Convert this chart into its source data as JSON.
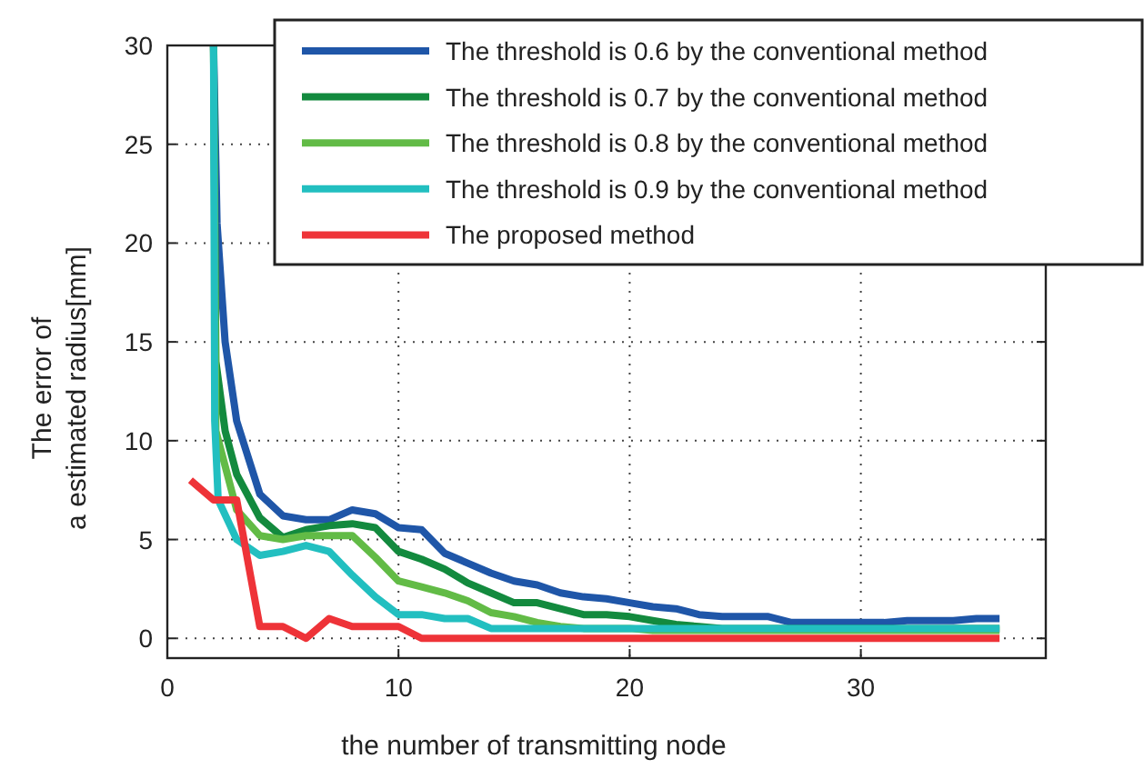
{
  "chart_data": {
    "type": "line",
    "xlabel": "the number of transmitting node",
    "ylabel": "The error of\na estimated radius[mm]",
    "xlim": [
      0,
      38
    ],
    "ylim": [
      -1,
      30
    ],
    "xticks": [
      0,
      10,
      20,
      30
    ],
    "yticks": [
      0,
      5,
      10,
      15,
      20,
      25,
      30
    ],
    "grid": true,
    "legend": "top right",
    "marker": "none",
    "line_style": "solid",
    "series": [
      {
        "name": "The threshold is 0.6 by the conventional method",
        "color": "#1f56a8",
        "x": [
          2,
          2.15,
          2.5,
          3,
          4,
          5,
          6,
          7,
          8,
          9,
          10,
          11,
          12,
          13,
          14,
          15,
          16,
          17,
          18,
          19,
          20,
          21,
          22,
          23,
          24,
          25,
          26,
          27,
          28,
          29,
          30,
          31,
          32,
          33,
          34,
          35,
          36
        ],
        "values": [
          30,
          21,
          15,
          11,
          7.3,
          6.2,
          6.0,
          6.0,
          6.5,
          6.3,
          5.6,
          5.5,
          4.3,
          3.8,
          3.3,
          2.9,
          2.7,
          2.3,
          2.1,
          2.0,
          1.8,
          1.6,
          1.5,
          1.2,
          1.1,
          1.1,
          1.1,
          0.8,
          0.8,
          0.8,
          0.8,
          0.8,
          0.9,
          0.9,
          0.9,
          1.0,
          1.0
        ]
      },
      {
        "name": "The threshold is 0.7 by the conventional method",
        "color": "#138a3e",
        "x": [
          2,
          2.1,
          2.5,
          3,
          4,
          5,
          6,
          7,
          8,
          9,
          10,
          11,
          12,
          13,
          14,
          15,
          16,
          17,
          18,
          19,
          20,
          21,
          22,
          23,
          24,
          25,
          26,
          27,
          28,
          29,
          30,
          31,
          32,
          33,
          34,
          35,
          36
        ],
        "values": [
          30,
          14,
          10.5,
          8.3,
          6.1,
          5.1,
          5.5,
          5.7,
          5.8,
          5.6,
          4.4,
          4.0,
          3.5,
          2.8,
          2.3,
          1.8,
          1.8,
          1.5,
          1.2,
          1.2,
          1.1,
          0.9,
          0.7,
          0.6,
          0.5,
          0.5,
          0.5,
          0.5,
          0.5,
          0.5,
          0.5,
          0.5,
          0.5,
          0.5,
          0.5,
          0.5,
          0.5
        ]
      },
      {
        "name": "The threshold is 0.8 by the conventional method",
        "color": "#62bb46",
        "x": [
          2,
          2.1,
          3,
          4,
          5,
          6,
          7,
          8,
          9,
          10,
          11,
          12,
          13,
          14,
          15,
          16,
          17,
          18,
          19,
          20,
          21,
          22,
          23,
          24,
          25,
          26,
          27,
          28,
          29,
          30,
          31,
          32,
          33,
          34,
          35,
          36
        ],
        "values": [
          30,
          10.5,
          6.5,
          5.2,
          5.0,
          5.2,
          5.2,
          5.2,
          4.1,
          2.9,
          2.6,
          2.3,
          1.9,
          1.3,
          1.1,
          0.8,
          0.6,
          0.5,
          0.5,
          0.5,
          0.4,
          0.4,
          0.4,
          0.4,
          0.4,
          0.4,
          0.4,
          0.4,
          0.4,
          0.4,
          0.4,
          0.4,
          0.4,
          0.4,
          0.4,
          0.4
        ]
      },
      {
        "name": "The threshold is 0.9 by the conventional method",
        "color": "#22bfc0",
        "x": [
          2,
          2.05,
          2.2,
          3,
          4,
          5,
          6,
          7,
          8,
          9,
          10,
          11,
          12,
          13,
          14,
          15,
          16,
          17,
          18,
          19,
          20,
          21,
          22,
          23,
          24,
          25,
          26,
          27,
          28,
          29,
          30,
          31,
          32,
          33,
          34,
          35,
          36
        ],
        "values": [
          30,
          11,
          7,
          5,
          4.2,
          4.4,
          4.7,
          4.4,
          3.2,
          2.1,
          1.2,
          1.2,
          1.0,
          1.0,
          0.5,
          0.5,
          0.5,
          0.5,
          0.5,
          0.5,
          0.5,
          0.5,
          0.5,
          0.5,
          0.5,
          0.5,
          0.5,
          0.5,
          0.5,
          0.5,
          0.5,
          0.5,
          0.5,
          0.5,
          0.5,
          0.5,
          0.5
        ]
      },
      {
        "name": "The proposed method",
        "color": "#ee3338",
        "x": [
          1,
          2,
          3,
          4,
          5,
          6,
          7,
          8,
          9,
          10,
          11,
          12,
          13,
          14,
          15,
          16,
          17,
          18,
          19,
          20,
          21,
          22,
          23,
          24,
          25,
          26,
          27,
          28,
          29,
          30,
          31,
          32,
          33,
          34,
          35,
          36
        ],
        "values": [
          8,
          7,
          7,
          0.6,
          0.6,
          0,
          1,
          0.6,
          0.6,
          0.6,
          0,
          0,
          0,
          0,
          0,
          0,
          0,
          0,
          0,
          0,
          0,
          0,
          0,
          0,
          0,
          0,
          0,
          0,
          0,
          0,
          0,
          0,
          0,
          0,
          0,
          0
        ]
      }
    ]
  }
}
